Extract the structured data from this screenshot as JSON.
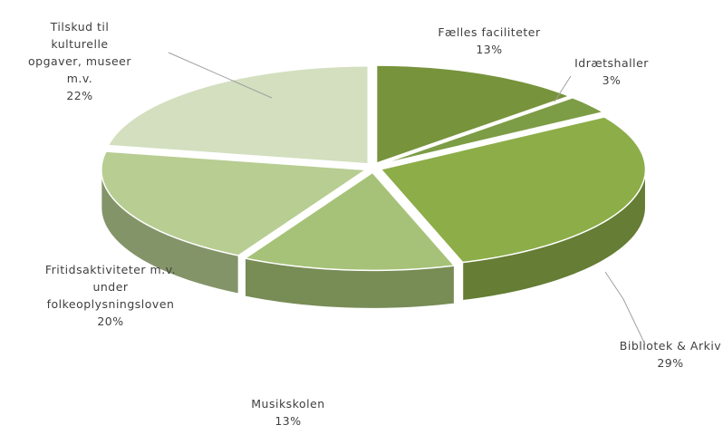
{
  "chart_data": {
    "type": "pie3d",
    "categories": [
      "Fælles faciliteter",
      "Idrætshaller",
      "Bibliotek & Arkiv",
      "Musikskolen",
      "Fritidsaktiviteter m.v. under folkeoplysningsloven",
      "Tilskud til kulturelle opgaver, museer m.v."
    ],
    "values": [
      13,
      3,
      29,
      13,
      20,
      22
    ],
    "value_labels": [
      "13%",
      "3%",
      "29%",
      "13%",
      "20%",
      "22%"
    ],
    "colors": [
      "#77933c",
      "#7d9c46",
      "#8cad48",
      "#a6c278",
      "#b8cd92",
      "#d3dfbf"
    ]
  }
}
